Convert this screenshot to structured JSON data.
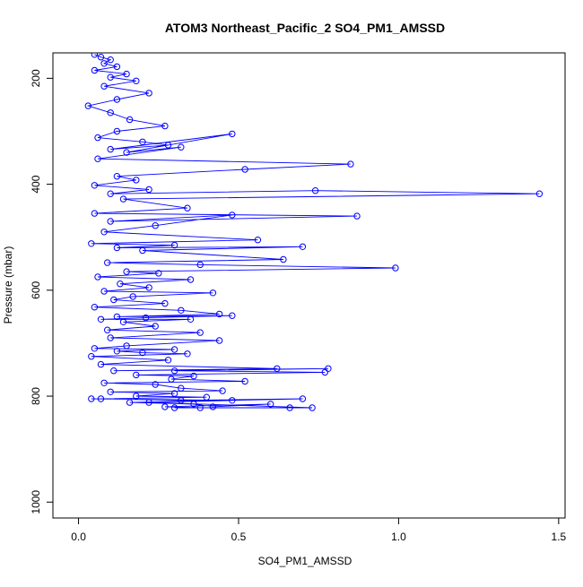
{
  "chart_data": {
    "type": "line",
    "title": "ATOM3 Northeast_Pacific_2 SO4_PM1_AMSSD",
    "xlabel": "SO4_PM1_AMSSD",
    "ylabel": "Pressure (mbar)",
    "xlim": [
      -0.08,
      1.52
    ],
    "ylim": [
      1030,
      152
    ],
    "y_reversed": true,
    "x_ticks": [
      0.0,
      0.5,
      1.0,
      1.5
    ],
    "x_tick_labels": [
      "0.0",
      "0.5",
      "1.0",
      "1.5"
    ],
    "y_ticks": [
      200,
      400,
      600,
      800,
      1000
    ],
    "y_tick_labels": [
      "200",
      "400",
      "600",
      "800",
      "1000"
    ],
    "grid": false,
    "legend": "none",
    "marker": "open-circle",
    "series_color": "#0000ff",
    "series": [
      {
        "x": [
          0.05,
          0.07,
          0.1,
          0.08,
          0.12,
          0.05,
          0.15,
          0.1,
          0.18,
          0.08,
          0.22,
          0.12,
          0.03,
          0.1,
          0.16,
          0.27,
          0.12,
          0.06,
          0.2,
          0.28,
          0.1,
          0.48,
          0.15,
          0.32,
          0.06,
          0.85,
          0.52,
          0.12,
          0.18,
          0.05,
          0.22,
          0.1,
          0.74,
          1.44,
          0.14,
          0.34,
          0.05,
          0.87,
          0.1,
          0.48,
          0.24,
          0.08,
          0.56,
          0.04,
          0.3,
          0.12,
          0.7,
          0.2,
          0.64,
          0.09,
          0.38,
          0.99,
          0.15,
          0.25,
          0.06,
          0.35,
          0.13,
          0.22,
          0.08,
          0.42,
          0.17,
          0.11,
          0.27,
          0.05,
          0.32,
          0.44,
          0.12,
          0.48,
          0.21,
          0.07,
          0.35,
          0.14,
          0.24,
          0.09,
          0.38,
          0.1,
          0.44,
          0.15,
          0.05,
          0.3,
          0.12,
          0.2,
          0.34,
          0.04,
          0.28,
          0.07,
          0.62,
          0.11,
          0.78,
          0.3,
          0.77,
          0.18,
          0.36,
          0.29,
          0.52,
          0.08,
          0.24,
          0.32,
          0.45,
          0.1,
          0.3,
          0.18,
          0.4,
          0.07,
          0.32,
          0.7,
          0.16,
          0.36,
          0.42,
          0.6,
          0.27,
          0.38,
          0.66,
          0.3,
          0.73,
          0.22,
          0.48,
          0.04
        ],
        "y": [
          155,
          160,
          165,
          172,
          178,
          185,
          192,
          198,
          205,
          215,
          228,
          240,
          252,
          265,
          278,
          290,
          300,
          312,
          320,
          326,
          334,
          305,
          340,
          330,
          352,
          362,
          372,
          385,
          392,
          402,
          410,
          418,
          412,
          418,
          428,
          445,
          455,
          460,
          470,
          458,
          478,
          490,
          505,
          512,
          515,
          520,
          518,
          525,
          542,
          548,
          552,
          558,
          565,
          568,
          575,
          580,
          588,
          595,
          602,
          605,
          612,
          618,
          625,
          632,
          638,
          645,
          650,
          648,
          652,
          655,
          655,
          660,
          668,
          675,
          680,
          690,
          695,
          705,
          710,
          712,
          715,
          718,
          720,
          725,
          732,
          740,
          748,
          752,
          748,
          752,
          755,
          760,
          762,
          768,
          772,
          775,
          778,
          785,
          790,
          792,
          795,
          800,
          802,
          805,
          808,
          805,
          812,
          815,
          820,
          815,
          820,
          822,
          822,
          822,
          822,
          812,
          808,
          805
        ]
      }
    ]
  }
}
